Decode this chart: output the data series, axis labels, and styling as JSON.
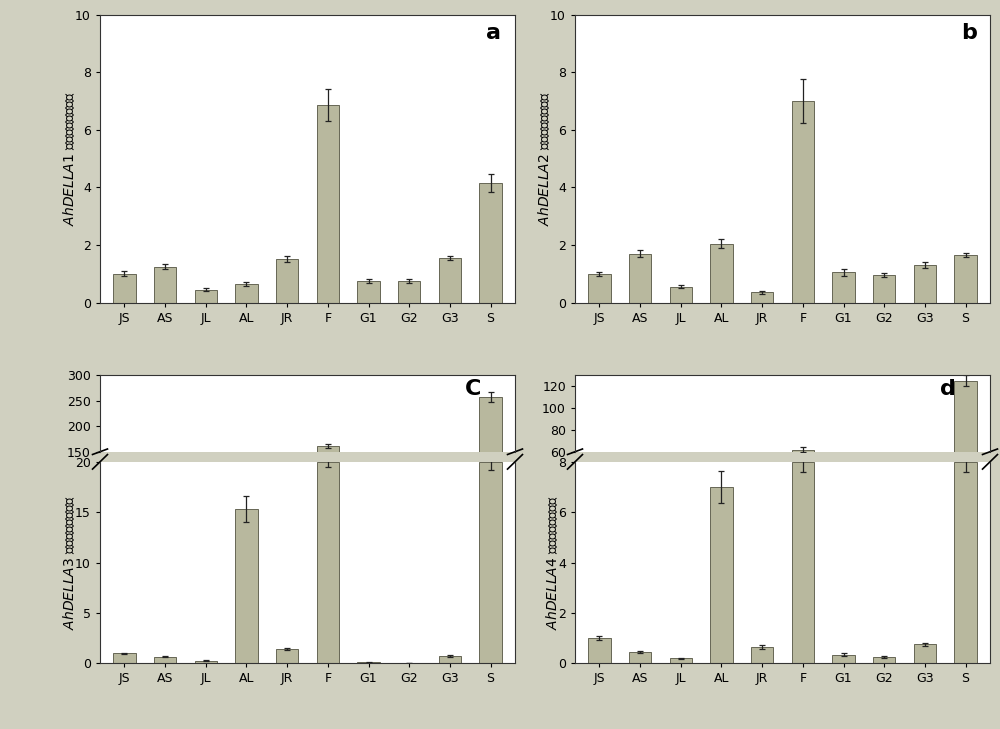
{
  "categories": [
    "JS",
    "AS",
    "JL",
    "AL",
    "JR",
    "F",
    "G1",
    "G2",
    "G3",
    "S"
  ],
  "panel_a": {
    "label": "AhDELLA1",
    "values": [
      1.0,
      1.25,
      0.45,
      0.65,
      1.5,
      6.85,
      0.75,
      0.75,
      1.55,
      4.15
    ],
    "errors": [
      0.08,
      0.1,
      0.05,
      0.08,
      0.1,
      0.55,
      0.07,
      0.07,
      0.08,
      0.3
    ],
    "ylim": [
      0,
      10
    ],
    "yticks": [
      0,
      2,
      4,
      6,
      8,
      10
    ],
    "panel_label": "a"
  },
  "panel_b": {
    "label": "AhDELLA2",
    "values": [
      1.0,
      1.7,
      0.55,
      2.05,
      0.35,
      7.0,
      1.05,
      0.95,
      1.3,
      1.65
    ],
    "errors": [
      0.07,
      0.12,
      0.06,
      0.15,
      0.05,
      0.75,
      0.12,
      0.08,
      0.1,
      0.08
    ],
    "ylim": [
      0,
      10
    ],
    "yticks": [
      0,
      2,
      4,
      6,
      8,
      10
    ],
    "panel_label": "b"
  },
  "panel_c": {
    "label": "AhDELLA3",
    "values": [
      1.0,
      0.65,
      0.25,
      15.3,
      1.45,
      20.0,
      0.1,
      0.05,
      0.75,
      20.0
    ],
    "errors": [
      0.08,
      0.06,
      0.04,
      1.3,
      0.12,
      0.5,
      0.02,
      0.02,
      0.1,
      0.8
    ],
    "true_values": [
      1.0,
      0.65,
      0.25,
      15.3,
      1.45,
      162.0,
      0.1,
      0.05,
      0.75,
      258.0
    ],
    "true_errors_top": [
      0.08,
      0.06,
      0.04,
      1.3,
      0.12,
      4.0,
      0.02,
      0.02,
      0.1,
      10.0
    ],
    "ylim_lower": [
      0,
      20
    ],
    "yticks_lower": [
      0,
      5,
      10,
      15,
      20
    ],
    "ylim_upper": [
      150,
      300
    ],
    "yticks_upper": [
      150,
      200,
      250,
      300
    ],
    "panel_label": "C",
    "broken_bars": [
      5,
      9
    ]
  },
  "panel_d": {
    "label": "AhDELLA4",
    "values": [
      1.0,
      0.45,
      0.2,
      7.0,
      0.65,
      8.0,
      0.35,
      0.25,
      0.75,
      8.0
    ],
    "errors": [
      0.08,
      0.05,
      0.03,
      0.65,
      0.08,
      0.4,
      0.05,
      0.04,
      0.07,
      0.4
    ],
    "true_values": [
      1.0,
      0.45,
      0.2,
      7.0,
      0.65,
      62.0,
      0.35,
      0.25,
      0.75,
      125.0
    ],
    "true_errors_top": [
      0.08,
      0.05,
      0.03,
      0.65,
      0.08,
      2.5,
      0.05,
      0.04,
      0.07,
      5.0
    ],
    "ylim_lower": [
      0,
      8
    ],
    "yticks_lower": [
      0,
      2,
      4,
      6,
      8
    ],
    "ylim_upper": [
      60,
      130
    ],
    "yticks_upper": [
      60,
      80,
      100,
      120
    ],
    "panel_label": "d",
    "broken_bars": [
      5,
      9
    ]
  },
  "bar_color": "#b8b89e",
  "bar_edge_color": "#666655",
  "ylabel_gene_fontsize": 10,
  "ylabel_chinese_fontsize": 10,
  "tick_fontsize": 9,
  "panel_label_fontsize": 16,
  "figure_bg": "#d0d0c0",
  "plot_bg": "#ffffff",
  "figsize": [
    10.0,
    7.29
  ]
}
